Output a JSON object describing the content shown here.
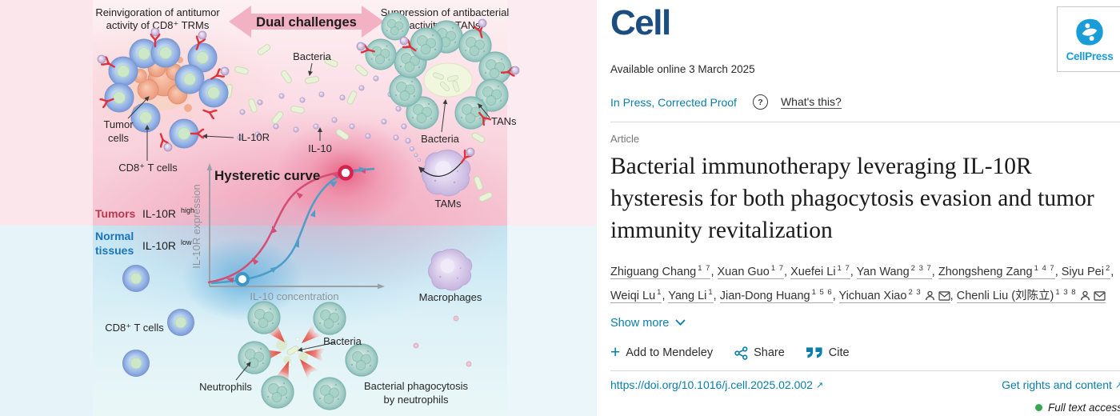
{
  "graphic": {
    "labels": {
      "reinvig1": "Reinvigoration of antitumor",
      "reinvig2": "activity of CD8⁺ TRMs",
      "dual": "Dual challenges",
      "suppress1": "Suppression of antibacterial",
      "suppress2": "activity of TANs",
      "bacteria_top": "Bacteria",
      "tumor1": "Tumor",
      "tumor2": "cells",
      "cd8_top": "CD8⁺ T cells",
      "il10r": "IL-10R",
      "il10": "IL-10",
      "tans": "TANs",
      "bacteria_right": "Bacteria",
      "tams": "TAMs",
      "hyst": "Hysteretic curve",
      "tumors": "Tumors",
      "il10r_high_base": "IL-10R",
      "il10r_high_sup": "high",
      "normal1": "Normal",
      "normal2": "tissues",
      "il10r_low_base": "IL-10R",
      "il10r_low_sup": "low",
      "yaxis": "IL-10R expression",
      "xaxis": "IL-10 concentration",
      "cd8_bottom": "CD8⁺ T cells",
      "macrophages": "Macrophages",
      "neutrophils": "Neutrophils",
      "bacteria_bottom": "Bacteria",
      "phago1": "Bacterial phagocytosis",
      "phago2": "by neutrophils"
    },
    "curve": {
      "type": "hysteresis sigmoid loop",
      "series": [
        "IL-10R high branch (tumors)",
        "IL-10R low branch (normal tissues)"
      ],
      "x_label": "IL-10 concentration",
      "y_label": "IL-10R expression"
    }
  },
  "journal": {
    "logo": "Cell",
    "publisher": "CellPress"
  },
  "header": {
    "available": "Available online 3 March 2025",
    "in_press": "In Press, Corrected Proof",
    "help": "?",
    "whats_this": "What's this?"
  },
  "article": {
    "type_label": "Article",
    "title": "Bacterial immunotherapy leveraging IL-10R hysteresis for both phagocytosis evasion and tumor immunity revitalization"
  },
  "authors": {
    "show_more": "Show more",
    "separator": ", ",
    "list": [
      {
        "name": "Zhiguang Chang",
        "sup": "1 7",
        "person": false,
        "email": false
      },
      {
        "name": "Xuan Guo",
        "sup": "1 7",
        "person": false,
        "email": false
      },
      {
        "name": "Xuefei Li",
        "sup": "1 7",
        "person": false,
        "email": false
      },
      {
        "name": "Yan Wang",
        "sup": "2 3 7",
        "person": false,
        "email": false
      },
      {
        "name": "Zhongsheng Zang",
        "sup": "1 4 7",
        "person": false,
        "email": false
      },
      {
        "name": "Siyu Pei",
        "sup": "2",
        "person": false,
        "email": false
      },
      {
        "name": "Weiqi Lu",
        "sup": "1",
        "person": false,
        "email": false
      },
      {
        "name": "Yang Li",
        "sup": "1",
        "person": false,
        "email": false
      },
      {
        "name": "Jian-Dong Huang",
        "sup": "1 5 6",
        "person": false,
        "email": false
      },
      {
        "name": "Yichuan Xiao",
        "sup": "2 3",
        "person": true,
        "email": true
      },
      {
        "name": "Chenli Liu (刘陈立)",
        "sup": "1 3 8",
        "person": true,
        "email": true
      }
    ]
  },
  "actions": {
    "plus": "+",
    "mendeley": "Add to Mendeley",
    "share": "Share",
    "cite": "Cite"
  },
  "footer": {
    "doi": "https://doi.org/10.1016/j.cell.2025.02.002",
    "rights": "Get rights and content",
    "access": "Full text access"
  },
  "colors": {
    "link": "#0b7dab",
    "cell_logo": "#1b4d80",
    "cellpress": "#199cd8",
    "access_green": "#35a84c"
  }
}
